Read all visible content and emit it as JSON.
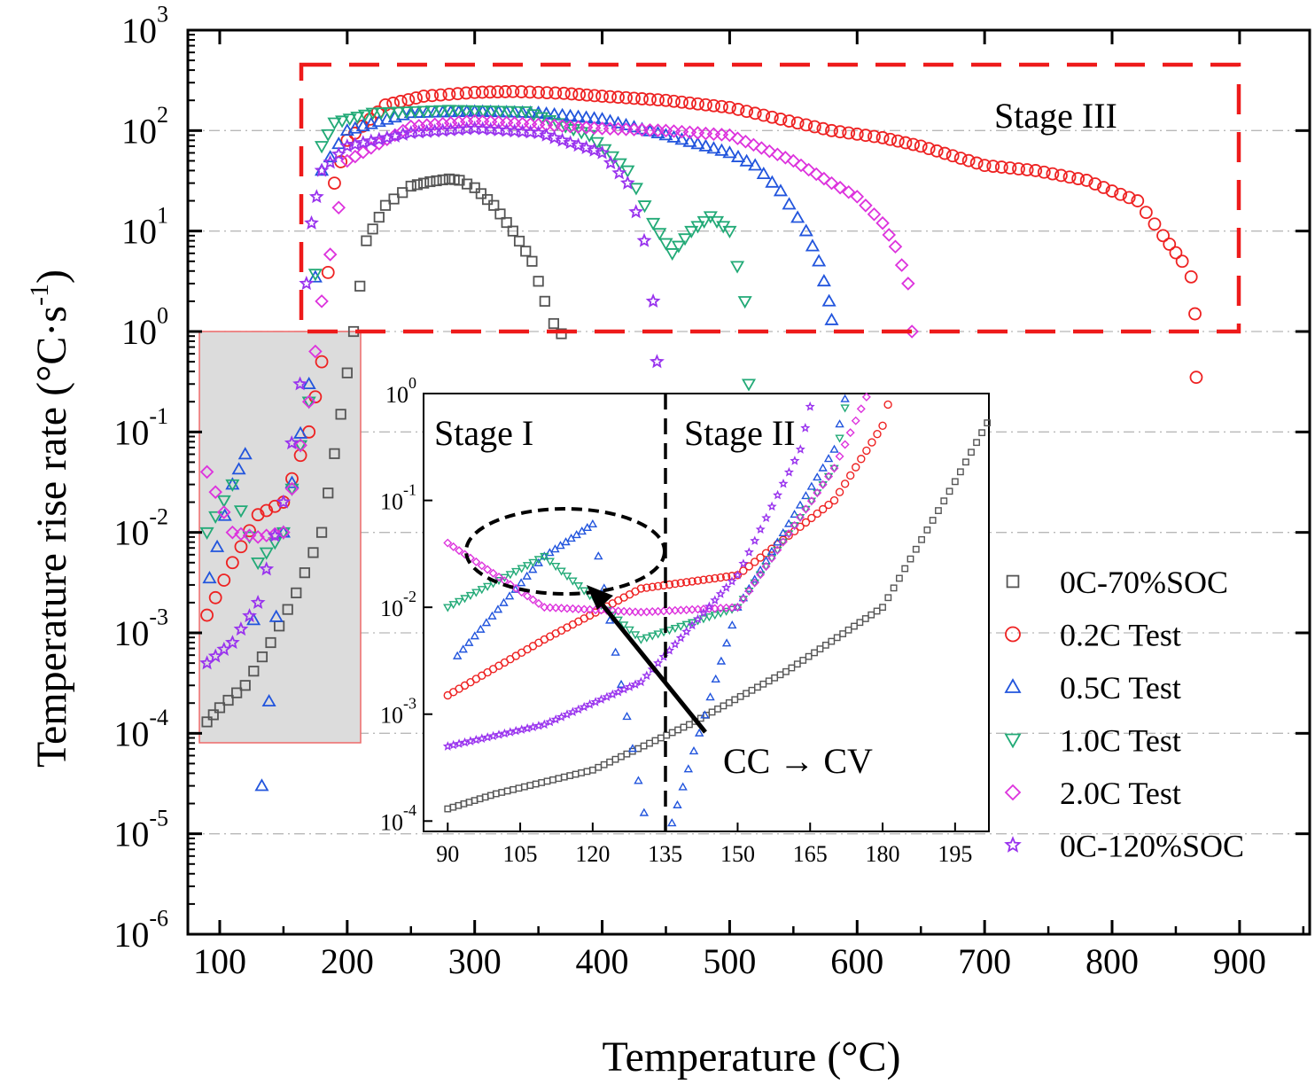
{
  "chart_data": {
    "type": "scatter",
    "xlabel": "Temperature (°C)",
    "ylabel": "Temperature rise rate (°C·s-1)",
    "ylabel_parts": {
      "text": "Temperature rise rate (°C·s",
      "sup": "-1",
      "close": ")"
    },
    "yscale": "log",
    "xlim": [
      75,
      955
    ],
    "ylim": [
      1e-06,
      1000.0
    ],
    "xticks": [
      "100",
      "200",
      "300",
      "400",
      "500",
      "600",
      "700",
      "800",
      "900"
    ],
    "yticks": [
      {
        "base": "10",
        "exp": "-6"
      },
      {
        "base": "10",
        "exp": "-5"
      },
      {
        "base": "10",
        "exp": "-4"
      },
      {
        "base": "10",
        "exp": "-3"
      },
      {
        "base": "10",
        "exp": "-2"
      },
      {
        "base": "10",
        "exp": "-1"
      },
      {
        "base": "10",
        "exp": "0"
      },
      {
        "base": "10",
        "exp": "1"
      },
      {
        "base": "10",
        "exp": "2"
      },
      {
        "base": "10",
        "exp": "3"
      }
    ],
    "grid": "horizontal dash-dot",
    "legend_position": "right",
    "series": [
      {
        "name": "0C-70%SOC",
        "marker": "square",
        "color": "#555555",
        "x": [
          90,
          100,
          120,
          140,
          160,
          180,
          195,
          205,
          215,
          230,
          250,
          265,
          280,
          288,
          300,
          315,
          330,
          345,
          355,
          362,
          368
        ],
        "y": [
          0.00013,
          0.00018,
          0.0003,
          0.0008,
          0.0025,
          0.01,
          0.15,
          1.0,
          8.0,
          18,
          28,
          31,
          33,
          32,
          27,
          18,
          10,
          5,
          2.0,
          1.2,
          0.95
        ]
      },
      {
        "name": "0.2C Test",
        "marker": "circle",
        "color": "#ee2222",
        "x": [
          90,
          110,
          130,
          150,
          170,
          180,
          190,
          200,
          230,
          260,
          300,
          330,
          370,
          400,
          450,
          500,
          540,
          580,
          620,
          650,
          700,
          740,
          780,
          800,
          820,
          840,
          855,
          862,
          865,
          866
        ],
        "y": [
          0.0015,
          0.005,
          0.015,
          0.02,
          0.1,
          0.5,
          30,
          80,
          180,
          220,
          240,
          245,
          235,
          220,
          200,
          170,
          130,
          100,
          85,
          70,
          45,
          40,
          32,
          25,
          20,
          9,
          5,
          3.5,
          1.5,
          0.35
        ]
      },
      {
        "name": "0.5C Test",
        "marker": "triangle-up",
        "color": "#2255dd",
        "x": [
          92,
          110,
          120,
          133,
          150,
          170,
          180,
          200,
          250,
          300,
          350,
          400,
          450,
          500,
          520,
          540,
          560,
          570,
          578,
          580
        ],
        "y": [
          0.0035,
          0.03,
          0.06,
          3e-05,
          0.01,
          0.3,
          40,
          100,
          150,
          155,
          150,
          130,
          90,
          60,
          45,
          25,
          10,
          5,
          2,
          1.3
        ]
      },
      {
        "name": "1.0C Test",
        "marker": "triangle-down",
        "color": "#22aa77",
        "x": [
          90,
          110,
          130,
          150,
          170,
          180,
          190,
          220,
          280,
          340,
          390,
          420,
          440,
          455,
          470,
          485,
          500,
          512,
          515
        ],
        "y": [
          0.01,
          0.03,
          0.005,
          0.01,
          0.2,
          70,
          120,
          150,
          160,
          155,
          90,
          40,
          12,
          6,
          10,
          14,
          10,
          2,
          0.3
        ]
      },
      {
        "name": "2.0C Test",
        "marker": "diamond",
        "color": "#dd33dd",
        "x": [
          90,
          110,
          130,
          150,
          170,
          180,
          200,
          250,
          300,
          350,
          400,
          450,
          500,
          550,
          580,
          600,
          620,
          630,
          640,
          643
        ],
        "y": [
          0.04,
          0.01,
          0.009,
          0.01,
          0.2,
          2.0,
          50,
          110,
          125,
          115,
          105,
          100,
          90,
          50,
          30,
          22,
          12,
          7,
          3,
          1.0
        ]
      },
      {
        "name": "0C-120%SOC",
        "marker": "star",
        "color": "#9933ee",
        "x": [
          90,
          110,
          130,
          150,
          163,
          168,
          172,
          180,
          200,
          250,
          300,
          350,
          400,
          420,
          433,
          440,
          443
        ],
        "y": [
          0.0005,
          0.0008,
          0.002,
          0.02,
          0.3,
          3.0,
          12,
          40,
          70,
          95,
          105,
          95,
          60,
          30,
          8,
          2,
          0.5
        ]
      }
    ],
    "annotations": {
      "stage3": "Stage III",
      "stage1": "Stage I",
      "stage2": "Stage II",
      "transition": "CC → CV"
    },
    "inset": {
      "xlim": [
        85,
        202
      ],
      "ylim": [
        8e-05,
        1.0
      ],
      "xticks": [
        "90",
        "105",
        "120",
        "135",
        "150",
        "165",
        "180",
        "195"
      ],
      "yticks": [
        {
          "base": "10",
          "exp": "-4"
        },
        {
          "base": "10",
          "exp": "-3"
        },
        {
          "base": "10",
          "exp": "-2"
        },
        {
          "base": "10",
          "exp": "-1"
        },
        {
          "base": "10",
          "exp": "0"
        }
      ],
      "divider_x": 135
    }
  }
}
